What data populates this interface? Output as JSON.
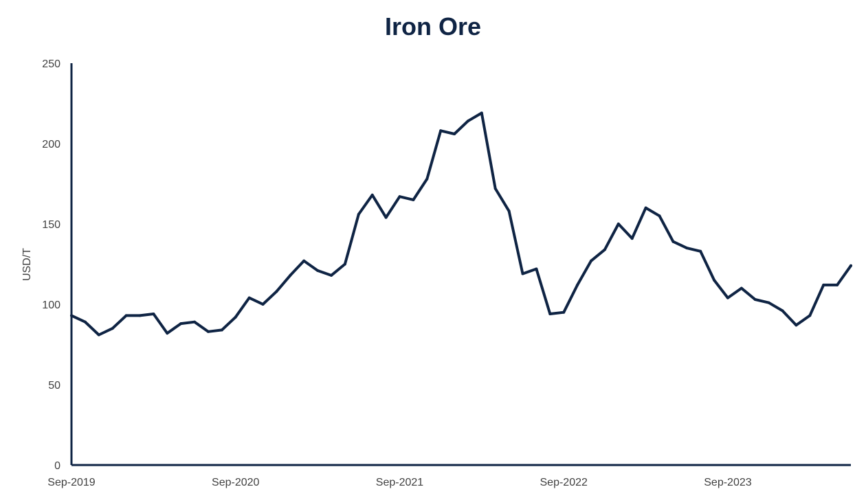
{
  "chart_data": {
    "type": "line",
    "title": "Iron Ore",
    "xlabel": "",
    "ylabel": "USD/T",
    "ylim": [
      0,
      250
    ],
    "yticks": [
      0,
      50,
      100,
      150,
      200,
      250
    ],
    "xlim": [
      "2019-09",
      "2024-06"
    ],
    "xticks": [
      "Sep-2019",
      "Sep-2020",
      "Sep-2021",
      "Sep-2022",
      "Sep-2023"
    ],
    "grid": false,
    "legend": "none",
    "line_color": "#0f2444",
    "series": [
      {
        "x": [
          "2019-09",
          "2019-10",
          "2019-11",
          "2019-12",
          "2020-01",
          "2020-02",
          "2020-03",
          "2020-04",
          "2020-05",
          "2020-06",
          "2020-07",
          "2020-08",
          "2020-09",
          "2020-10",
          "2020-11",
          "2020-12",
          "2021-01",
          "2021-02",
          "2021-03",
          "2021-04",
          "2021-05",
          "2021-06",
          "2021-07",
          "2021-08",
          "2021-09",
          "2021-10",
          "2021-11",
          "2021-12",
          "2022-01",
          "2022-02",
          "2022-03",
          "2022-04",
          "2022-05",
          "2022-06",
          "2022-07",
          "2022-08",
          "2022-09",
          "2022-10",
          "2022-11",
          "2022-12",
          "2023-01",
          "2023-02",
          "2023-03",
          "2023-04",
          "2023-05",
          "2023-06",
          "2023-07",
          "2023-08",
          "2023-09",
          "2023-10",
          "2023-11",
          "2023-12",
          "2024-01",
          "2024-02",
          "2024-03",
          "2024-04",
          "2024-05",
          "2024-06"
        ],
        "values": [
          93,
          89,
          81,
          85,
          93,
          93,
          94,
          82,
          88,
          89,
          83,
          84,
          92,
          104,
          100,
          108,
          118,
          127,
          121,
          118,
          125,
          156,
          168,
          154,
          167,
          165,
          178,
          208,
          206,
          214,
          219,
          172,
          158,
          119,
          122,
          94,
          95,
          112,
          127,
          134,
          150,
          141,
          160,
          155,
          139,
          135,
          133,
          115,
          104,
          110,
          103,
          101,
          96,
          87,
          93,
          112,
          112,
          124
        ]
      }
    ]
  }
}
